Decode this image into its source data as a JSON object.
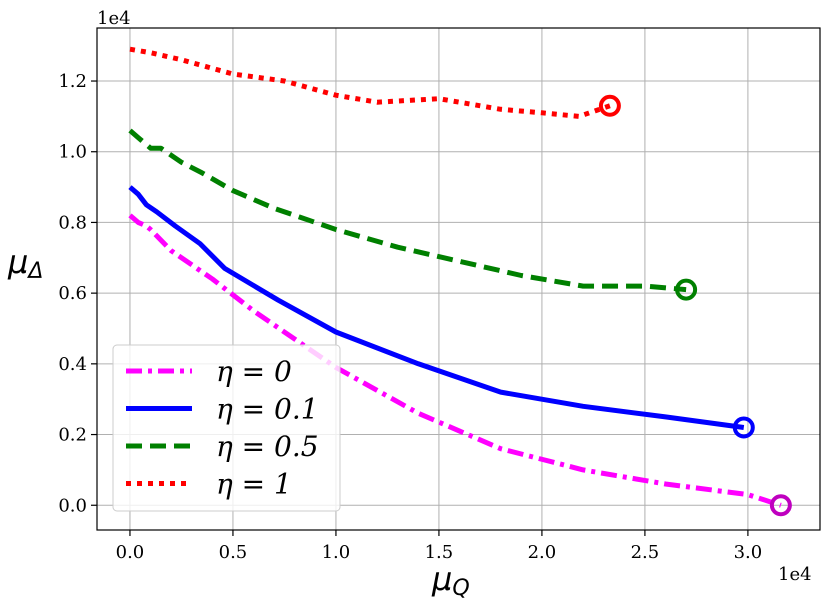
{
  "chart_data": {
    "type": "line",
    "x_offset_label": "1e4",
    "y_offset_label": "1e4",
    "xlabel": {
      "base": "μ",
      "sub": "Q"
    },
    "ylabel": {
      "base": "μ",
      "sub": "Δ"
    },
    "xlim": [
      -0.16,
      3.35
    ],
    "ylim": [
      -0.07,
      1.35
    ],
    "xticks": [
      0.0,
      0.5,
      1.0,
      1.5,
      2.0,
      2.5,
      3.0
    ],
    "xtick_labels": [
      "0.0",
      "0.5",
      "1.0",
      "1.5",
      "2.0",
      "2.5",
      "3.0"
    ],
    "yticks": [
      0.0,
      0.2,
      0.4,
      0.6,
      0.8,
      1.0,
      1.2
    ],
    "ytick_labels": [
      "0.0",
      "0.2",
      "0.4",
      "0.6",
      "0.8",
      "1.0",
      "1.2"
    ],
    "grid": true,
    "legend_position": "lower-left",
    "series": [
      {
        "name": "η = 0",
        "color": "#ff00ff",
        "dash": "dashdot",
        "end_marker_color": "#bf00bf",
        "x": [
          0.0,
          0.04,
          0.08,
          0.1,
          0.2,
          0.4,
          0.6,
          0.8,
          1.0,
          1.4,
          1.8,
          2.2,
          2.6,
          3.0,
          3.16
        ],
        "y": [
          0.82,
          0.8,
          0.79,
          0.78,
          0.72,
          0.64,
          0.55,
          0.47,
          0.39,
          0.26,
          0.16,
          0.1,
          0.06,
          0.03,
          0.0
        ]
      },
      {
        "name": "η = 0.1",
        "color": "#0000ff",
        "dash": "solid",
        "end_marker_color": "#0000ff",
        "x": [
          0.0,
          0.04,
          0.08,
          0.13,
          0.22,
          0.34,
          0.46,
          0.72,
          1.0,
          1.4,
          1.8,
          2.2,
          2.6,
          2.98
        ],
        "y": [
          0.9,
          0.88,
          0.85,
          0.83,
          0.79,
          0.74,
          0.67,
          0.58,
          0.49,
          0.4,
          0.32,
          0.28,
          0.25,
          0.22
        ]
      },
      {
        "name": "η = 0.5",
        "color": "#008000",
        "dash": "dashed",
        "end_marker_color": "#008000",
        "x": [
          0.0,
          0.04,
          0.1,
          0.15,
          0.25,
          0.35,
          0.5,
          0.7,
          1.0,
          1.3,
          1.6,
          1.9,
          2.2,
          2.5,
          2.7
        ],
        "y": [
          1.06,
          1.04,
          1.01,
          1.01,
          0.97,
          0.94,
          0.89,
          0.84,
          0.78,
          0.73,
          0.69,
          0.65,
          0.62,
          0.62,
          0.61
        ]
      },
      {
        "name": "η = 1",
        "color": "#ff0000",
        "dash": "dotted",
        "end_marker_color": "#ff0000",
        "x": [
          0.0,
          0.1,
          0.25,
          0.5,
          0.75,
          1.0,
          1.2,
          1.5,
          1.8,
          2.0,
          2.18,
          2.33
        ],
        "y": [
          1.29,
          1.28,
          1.26,
          1.22,
          1.2,
          1.16,
          1.14,
          1.15,
          1.12,
          1.11,
          1.1,
          1.13
        ]
      }
    ]
  }
}
